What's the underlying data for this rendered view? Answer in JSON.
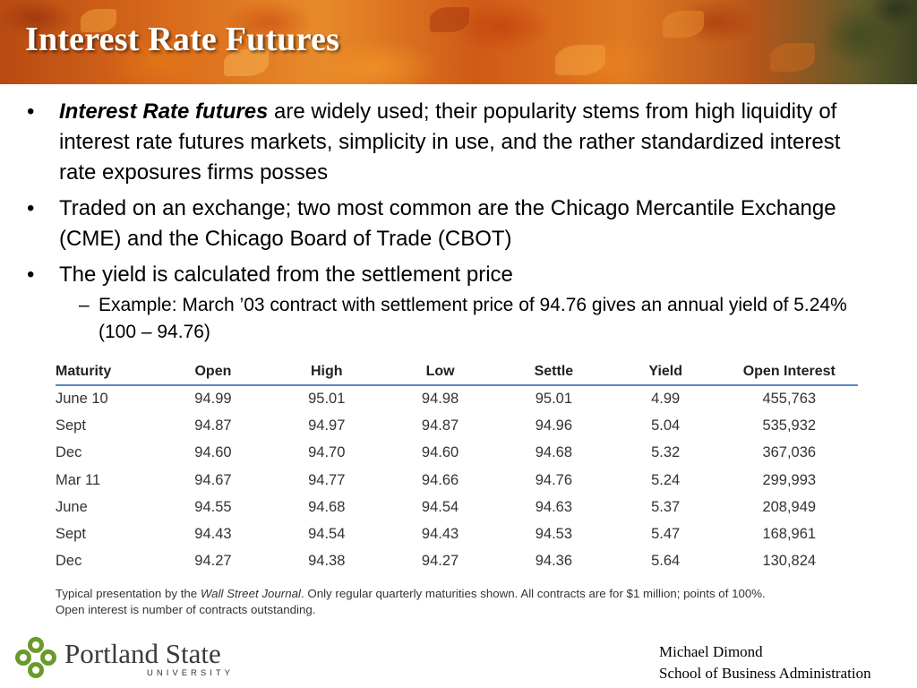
{
  "slide": {
    "title": "Interest Rate Futures"
  },
  "bullets": [
    {
      "emphasis": "Interest Rate futures",
      "text": " are widely used; their popularity stems from high liquidity of interest rate futures markets, simplicity in use, and the rather standardized interest rate exposures firms posses"
    },
    {
      "text": "Traded on an exchange; two most common are the Chicago Mercantile Exchange  (CME) and the Chicago Board of Trade (CBOT)"
    },
    {
      "text": "The yield is calculated from the settlement price"
    }
  ],
  "sub_bullet": {
    "text": "Example: March ’03 contract with settlement price of 94.76 gives an annual yield of 5.24% (100 – 94.76)"
  },
  "table": {
    "headers": [
      "Maturity",
      "Open",
      "High",
      "Low",
      "Settle",
      "Yield",
      "Open Interest"
    ],
    "rows": [
      [
        "June 10",
        "94.99",
        "95.01",
        "94.98",
        "95.01",
        "4.99",
        "455,763"
      ],
      [
        "Sept",
        "94.87",
        "94.97",
        "94.87",
        "94.96",
        "5.04",
        "535,932"
      ],
      [
        "Dec",
        "94.60",
        "94.70",
        "94.60",
        "94.68",
        "5.32",
        "367,036"
      ],
      [
        "Mar 11",
        "94.67",
        "94.77",
        "94.66",
        "94.76",
        "5.24",
        "299,993"
      ],
      [
        "June",
        "94.55",
        "94.68",
        "94.54",
        "94.63",
        "5.37",
        "208,949"
      ],
      [
        "Sept",
        "94.43",
        "94.54",
        "94.43",
        "94.53",
        "5.47",
        "168,961"
      ],
      [
        "Dec",
        "94.27",
        "94.38",
        "94.27",
        "94.36",
        "5.64",
        "130,824"
      ]
    ]
  },
  "note": {
    "prefix": "Typical presentation by the ",
    "source": "Wall Street Journal",
    "suffix": ". Only regular quarterly maturities shown. All contracts are for $1 million; points of 100%.",
    "line2": "Open interest is number of contracts outstanding."
  },
  "footer": {
    "logo_name": "Portland State",
    "logo_sub": "UNIVERSITY",
    "logo_icon": "psu-leaf-icon",
    "logo_color": "#6a9a2a",
    "author": "Michael Dimond",
    "school": "School of Business Administration"
  },
  "colors": {
    "table_rule": "#5a86c0"
  }
}
